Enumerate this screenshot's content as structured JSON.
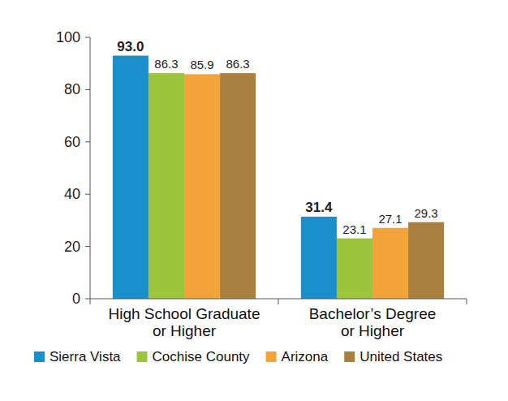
{
  "chart_data": {
    "type": "bar",
    "categories": [
      "High School Graduate or Higher",
      "Bachelor’s Degree or Higher"
    ],
    "series": [
      {
        "name": "Sierra Vista",
        "color": "#1a8fcb",
        "values": [
          93.0,
          31.4
        ],
        "value_labels": [
          "93.0",
          "31.4"
        ]
      },
      {
        "name": "Cochise County",
        "color": "#9cc43c",
        "values": [
          86.3,
          23.1
        ]
      },
      {
        "name": "Arizona",
        "color": "#f2a33a",
        "values": [
          85.9,
          27.1
        ]
      },
      {
        "name": "United States",
        "color": "#a98040",
        "values": [
          86.3,
          29.3
        ]
      }
    ],
    "ylim": [
      0,
      100
    ],
    "yticks": [
      0,
      20,
      40,
      60,
      80,
      100
    ],
    "grid": false,
    "data_labels": true,
    "legend": "bottom"
  }
}
